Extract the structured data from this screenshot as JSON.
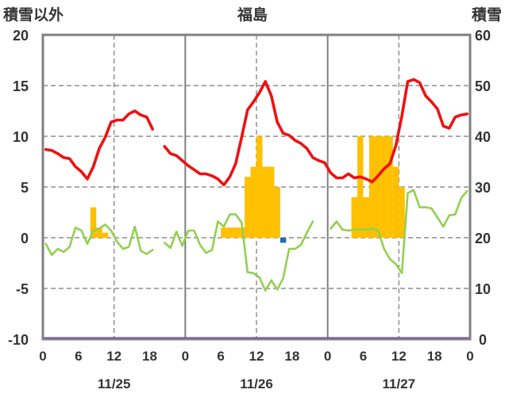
{
  "chart_data": {
    "type": "bar+line",
    "title": "福島",
    "left_axis_label": "積雪以外",
    "right_axis_label": "積雪",
    "left_ylim": [
      -10,
      20
    ],
    "left_ticks": [
      "20",
      "15",
      "10",
      "5",
      "0",
      "-5",
      "-10"
    ],
    "right_ylim": [
      0,
      60
    ],
    "right_ticks": [
      "60",
      "50",
      "40",
      "30",
      "20",
      "10",
      "0"
    ],
    "x_ticks": [
      "0",
      "6",
      "12",
      "18",
      "0",
      "6",
      "12",
      "18",
      "0",
      "6",
      "12",
      "18",
      "0"
    ],
    "dates": [
      "11/25",
      "11/26",
      "11/27"
    ],
    "hours": 72,
    "grid": true,
    "colors": {
      "temperature": "#ee1111",
      "precipitation": "#ffc000",
      "green_line": "#92d050",
      "negative_bar": "#1f6fb0",
      "snow_depth": "#7030a0",
      "frame": "#808080"
    },
    "series": {
      "temperature": [
        [
          0,
          8.7
        ],
        [
          1,
          8.6
        ],
        [
          2,
          8.3
        ],
        [
          3,
          7.9
        ],
        [
          4,
          7.8
        ],
        [
          5,
          7.0
        ],
        [
          6,
          6.5
        ],
        [
          7,
          5.8
        ],
        [
          8,
          7.0
        ],
        [
          9,
          8.8
        ],
        [
          10,
          9.9
        ],
        [
          11,
          11.4
        ],
        [
          12,
          11.6
        ],
        [
          13,
          11.6
        ],
        [
          14,
          12.2
        ],
        [
          15,
          12.5
        ],
        [
          16,
          12.1
        ],
        [
          17,
          11.9
        ],
        [
          18,
          10.7
        ],
        null,
        [
          20,
          9.0
        ],
        [
          21,
          8.3
        ],
        [
          22,
          8.1
        ],
        [
          23,
          7.6
        ],
        [
          24,
          7.1
        ],
        [
          25,
          6.7
        ],
        [
          26,
          6.3
        ],
        [
          27,
          6.3
        ],
        [
          28,
          6.1
        ],
        [
          29,
          5.8
        ],
        [
          30,
          5.2
        ],
        [
          31,
          6.0
        ],
        [
          32,
          7.3
        ],
        [
          33,
          9.9
        ],
        [
          34,
          12.6
        ],
        [
          35,
          13.4
        ],
        [
          36,
          14.3
        ],
        [
          37,
          15.4
        ],
        [
          38,
          14.0
        ],
        [
          39,
          11.4
        ],
        [
          40,
          10.3
        ],
        [
          41,
          10.1
        ],
        [
          42,
          9.6
        ],
        [
          43,
          9.3
        ],
        [
          44,
          8.8
        ],
        [
          45,
          7.9
        ],
        [
          46,
          7.6
        ],
        [
          47,
          7.4
        ],
        [
          48,
          6.4
        ],
        [
          49,
          5.9
        ],
        [
          50,
          5.9
        ],
        [
          51,
          6.3
        ],
        [
          52,
          5.9
        ],
        [
          53,
          6.0
        ],
        [
          54,
          5.8
        ],
        [
          55,
          5.5
        ],
        [
          56,
          6.1
        ],
        [
          57,
          6.8
        ],
        [
          58,
          7.3
        ],
        [
          59,
          9.1
        ],
        [
          60,
          12.0
        ],
        [
          61,
          15.4
        ],
        [
          62,
          15.6
        ],
        [
          63,
          15.3
        ],
        [
          64,
          14.0
        ],
        [
          65,
          13.4
        ],
        [
          66,
          12.7
        ],
        [
          67,
          11.0
        ],
        [
          68,
          10.8
        ],
        [
          69,
          11.9
        ],
        [
          70,
          12.1
        ],
        [
          71,
          12.2
        ]
      ],
      "green_line": [
        [
          0,
          -0.6
        ],
        [
          1,
          -1.7
        ],
        [
          2,
          -1.1
        ],
        [
          3,
          -1.4
        ],
        [
          4,
          -0.9
        ],
        [
          5,
          1.0
        ],
        [
          6,
          0.7
        ],
        [
          7,
          -0.6
        ],
        [
          8,
          0.7
        ],
        [
          9,
          0.9
        ],
        [
          10,
          1.3
        ],
        [
          11,
          0.7
        ],
        [
          12,
          -0.4
        ],
        [
          13,
          -1.1
        ],
        [
          14,
          -0.9
        ],
        [
          15,
          1.1
        ],
        [
          16,
          -1.3
        ],
        [
          17,
          -1.6
        ],
        [
          18,
          -1.2
        ],
        null,
        [
          20,
          -0.5
        ],
        [
          21,
          -1.0
        ],
        [
          22,
          0.6
        ],
        [
          23,
          -0.8
        ],
        [
          24,
          0.7
        ],
        [
          25,
          0.7
        ],
        [
          26,
          -0.7
        ],
        [
          27,
          -1.5
        ],
        [
          28,
          -1.2
        ],
        [
          29,
          1.6
        ],
        [
          30,
          1.1
        ],
        [
          31,
          2.3
        ],
        [
          32,
          2.3
        ],
        [
          33,
          1.5
        ],
        [
          34,
          -3.4
        ],
        [
          35,
          -3.5
        ],
        [
          36,
          -3.9
        ],
        [
          37,
          -5.2
        ],
        [
          38,
          -4.2
        ],
        [
          39,
          -5.1
        ],
        [
          40,
          -4.0
        ],
        [
          41,
          -1.1
        ],
        [
          42,
          -1.1
        ],
        [
          43,
          -0.7
        ],
        [
          44,
          0.5
        ],
        [
          45,
          1.6
        ],
        null,
        [
          48,
          0.9
        ],
        [
          49,
          1.6
        ],
        [
          50,
          0.8
        ],
        [
          51,
          0.7
        ],
        [
          52,
          0.8
        ],
        [
          53,
          0.8
        ],
        [
          54,
          0.8
        ],
        [
          55,
          0.9
        ],
        [
          56,
          0.7
        ],
        [
          57,
          -1.1
        ],
        [
          58,
          -2.1
        ],
        [
          59,
          -2.6
        ],
        [
          60,
          -3.5
        ],
        [
          61,
          4.4
        ],
        [
          62,
          4.7
        ],
        [
          63,
          3.0
        ],
        [
          64,
          3.0
        ],
        [
          65,
          2.9
        ],
        [
          66,
          2.0
        ],
        [
          67,
          1.1
        ],
        [
          68,
          2.2
        ],
        [
          69,
          2.3
        ],
        [
          70,
          3.9
        ],
        [
          71,
          4.6
        ]
      ],
      "precipitation": [
        [
          8,
          3
        ],
        [
          9,
          1
        ],
        [
          10,
          0.5
        ],
        [
          30,
          1
        ],
        [
          31,
          1
        ],
        [
          32,
          1
        ],
        [
          33,
          1
        ],
        [
          34,
          6
        ],
        [
          35,
          7
        ],
        [
          36,
          10
        ],
        [
          37,
          7
        ],
        [
          38,
          7
        ],
        [
          39,
          5
        ],
        [
          52,
          4
        ],
        [
          53,
          10
        ],
        [
          54,
          4
        ],
        [
          55,
          10
        ],
        [
          56,
          10
        ],
        [
          57,
          10
        ],
        [
          58,
          10
        ],
        [
          59,
          7
        ],
        [
          60,
          5
        ]
      ],
      "negative_bar": [
        [
          40,
          -0.5
        ]
      ],
      "snow_depth": [
        [
          0,
          0
        ],
        [
          72,
          0
        ]
      ]
    }
  }
}
